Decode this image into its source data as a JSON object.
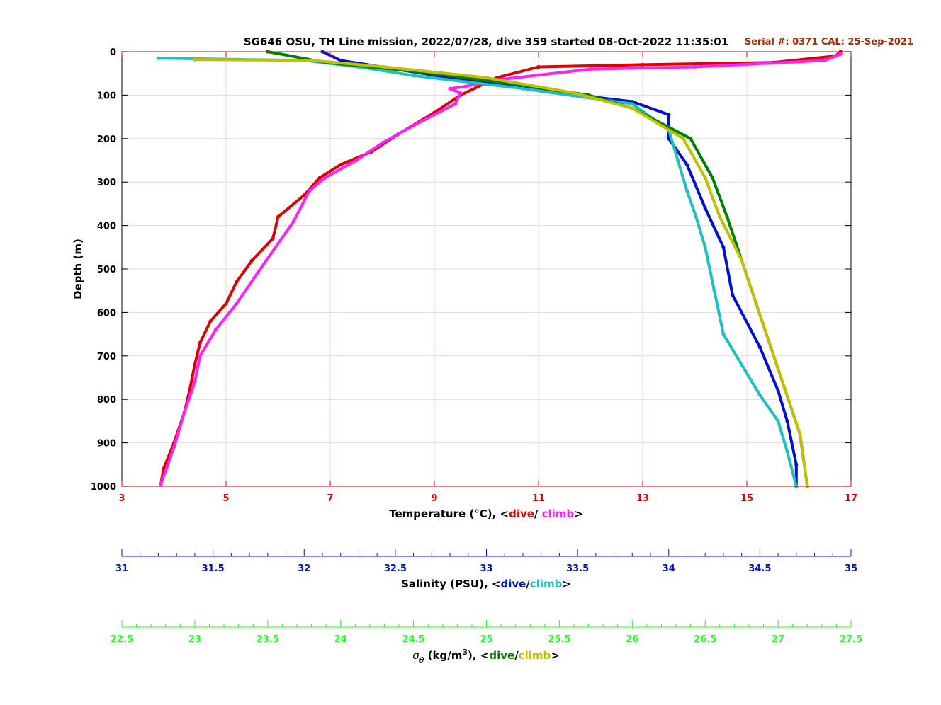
{
  "chart_data": {
    "type": "line",
    "title": "SG646 OSU, TH Line mission, 2022/07/28, dive 359 started 08-Oct-2022 11:35:01",
    "annotation": "Serial #: 0371  CAL: 25-Sep-2021",
    "ylabel": "Depth (m)",
    "ylim": [
      0,
      1000
    ],
    "yticks": [
      "0",
      "100",
      "200",
      "300",
      "400",
      "500",
      "600",
      "700",
      "800",
      "900",
      "1000"
    ],
    "y_reversed": true,
    "grid": true,
    "colors": {
      "temp_dive": "#e00000",
      "temp_climb": "#ff20ff",
      "sal_dive": "#0010d0",
      "sal_climb": "#20c0c0",
      "sig_dive": "#008000",
      "sig_climb": "#c0c000",
      "annotation": "#a03000",
      "temp_axis": "#e00000",
      "sal_axis": "#0010d0",
      "sig_axis": "#20ff20"
    },
    "axes": {
      "temperature": {
        "label_prefix": "Temperature (°C), <",
        "dive": "dive",
        "sep": "/ ",
        "climb": "climb",
        "label_suffix": ">",
        "xlim": [
          3,
          17
        ],
        "ticks": [
          "3",
          "5",
          "7",
          "9",
          "11",
          "13",
          "15",
          "17"
        ]
      },
      "salinity": {
        "label_prefix": "Salinity (PSU), <",
        "dive": "dive",
        "sep": "/",
        "climb": "climb",
        "label_suffix": ">",
        "xlim": [
          31,
          35
        ],
        "ticks": [
          "31",
          "31.5",
          "32",
          "32.5",
          "33",
          "33.5",
          "34",
          "34.5",
          "35"
        ]
      },
      "sigma": {
        "label_symbol": "σ",
        "label_sub": "θ",
        "label_prefix": " (kg/m",
        "label_sup": "3",
        "label_mid": "), <",
        "dive": "dive",
        "sep": "/",
        "climb": "climb",
        "label_suffix": ">",
        "xlim": [
          22.5,
          27.5
        ],
        "ticks": [
          "22.5",
          "23",
          "23.5",
          "24",
          "24.5",
          "25",
          "25.5",
          "26",
          "26.5",
          "27",
          "27.5"
        ]
      }
    },
    "series": [
      {
        "name": "dive",
        "quantity": "temperature",
        "color_key": "temp_dive",
        "points": [
          [
            16.8,
            0
          ],
          [
            16.7,
            10
          ],
          [
            15.5,
            25
          ],
          [
            13.0,
            30
          ],
          [
            11.0,
            35
          ],
          [
            10.2,
            60
          ],
          [
            9.5,
            100
          ],
          [
            9.0,
            140
          ],
          [
            8.3,
            190
          ],
          [
            7.8,
            230
          ],
          [
            7.2,
            260
          ],
          [
            6.8,
            290
          ],
          [
            6.5,
            330
          ],
          [
            6.0,
            380
          ],
          [
            5.9,
            430
          ],
          [
            5.5,
            480
          ],
          [
            5.2,
            530
          ],
          [
            5.0,
            580
          ],
          [
            4.7,
            620
          ],
          [
            4.5,
            670
          ],
          [
            4.4,
            720
          ],
          [
            4.3,
            780
          ],
          [
            4.2,
            830
          ],
          [
            4.0,
            900
          ],
          [
            3.8,
            960
          ],
          [
            3.75,
            995
          ]
        ]
      },
      {
        "name": "climb",
        "quantity": "temperature",
        "color_key": "temp_climb",
        "points": [
          [
            3.75,
            995
          ],
          [
            4.0,
            910
          ],
          [
            4.2,
            830
          ],
          [
            4.4,
            760
          ],
          [
            4.5,
            700
          ],
          [
            4.8,
            640
          ],
          [
            5.2,
            580
          ],
          [
            5.6,
            510
          ],
          [
            6.3,
            390
          ],
          [
            6.6,
            320
          ],
          [
            6.9,
            290
          ],
          [
            7.5,
            250
          ],
          [
            8.0,
            210
          ],
          [
            8.6,
            170
          ],
          [
            9.4,
            120
          ],
          [
            9.5,
            95
          ],
          [
            9.3,
            85
          ],
          [
            9.6,
            80
          ],
          [
            10.2,
            65
          ],
          [
            12.0,
            40
          ],
          [
            14.0,
            35
          ],
          [
            16.5,
            20
          ],
          [
            16.8,
            5
          ]
        ]
      },
      {
        "name": "dive",
        "quantity": "salinity",
        "color_key": "sal_dive",
        "points": [
          [
            32.1,
            0
          ],
          [
            32.2,
            20
          ],
          [
            32.5,
            40
          ],
          [
            32.8,
            60
          ],
          [
            33.3,
            90
          ],
          [
            33.8,
            115
          ],
          [
            34.0,
            145
          ],
          [
            34.0,
            200
          ],
          [
            34.1,
            260
          ],
          [
            34.2,
            360
          ],
          [
            34.3,
            450
          ],
          [
            34.35,
            560
          ],
          [
            34.5,
            680
          ],
          [
            34.6,
            780
          ],
          [
            34.65,
            850
          ],
          [
            34.7,
            950
          ],
          [
            34.7,
            1000
          ]
        ]
      },
      {
        "name": "climb",
        "quantity": "salinity",
        "color_key": "sal_climb",
        "points": [
          [
            34.7,
            1000
          ],
          [
            34.65,
            920
          ],
          [
            34.6,
            850
          ],
          [
            34.5,
            790
          ],
          [
            34.4,
            720
          ],
          [
            34.3,
            650
          ],
          [
            34.25,
            550
          ],
          [
            34.2,
            450
          ],
          [
            34.15,
            380
          ],
          [
            34.1,
            320
          ],
          [
            34.05,
            250
          ],
          [
            34.0,
            180
          ],
          [
            33.8,
            120
          ],
          [
            33.2,
            85
          ],
          [
            32.6,
            55
          ],
          [
            32.3,
            35
          ],
          [
            32.0,
            20
          ],
          [
            31.2,
            15
          ]
        ]
      },
      {
        "name": "dive",
        "quantity": "sigma",
        "color_key": "sig_dive",
        "points": [
          [
            23.5,
            0
          ],
          [
            23.9,
            25
          ],
          [
            24.5,
            45
          ],
          [
            25.2,
            75
          ],
          [
            25.7,
            100
          ],
          [
            26.0,
            130
          ],
          [
            26.4,
            200
          ],
          [
            26.55,
            290
          ],
          [
            26.65,
            380
          ],
          [
            26.75,
            480
          ],
          [
            26.85,
            580
          ],
          [
            26.95,
            680
          ],
          [
            27.05,
            780
          ],
          [
            27.15,
            880
          ],
          [
            27.2,
            1000
          ]
        ]
      },
      {
        "name": "climb",
        "quantity": "sigma",
        "color_key": "sig_climb",
        "points": [
          [
            27.2,
            1000
          ],
          [
            27.15,
            880
          ],
          [
            27.05,
            780
          ],
          [
            26.95,
            680
          ],
          [
            26.85,
            580
          ],
          [
            26.75,
            480
          ],
          [
            26.6,
            380
          ],
          [
            26.5,
            290
          ],
          [
            26.35,
            200
          ],
          [
            26.0,
            130
          ],
          [
            25.6,
            95
          ],
          [
            25.0,
            60
          ],
          [
            24.3,
            35
          ],
          [
            23.8,
            20
          ],
          [
            23.0,
            18
          ]
        ]
      }
    ]
  }
}
